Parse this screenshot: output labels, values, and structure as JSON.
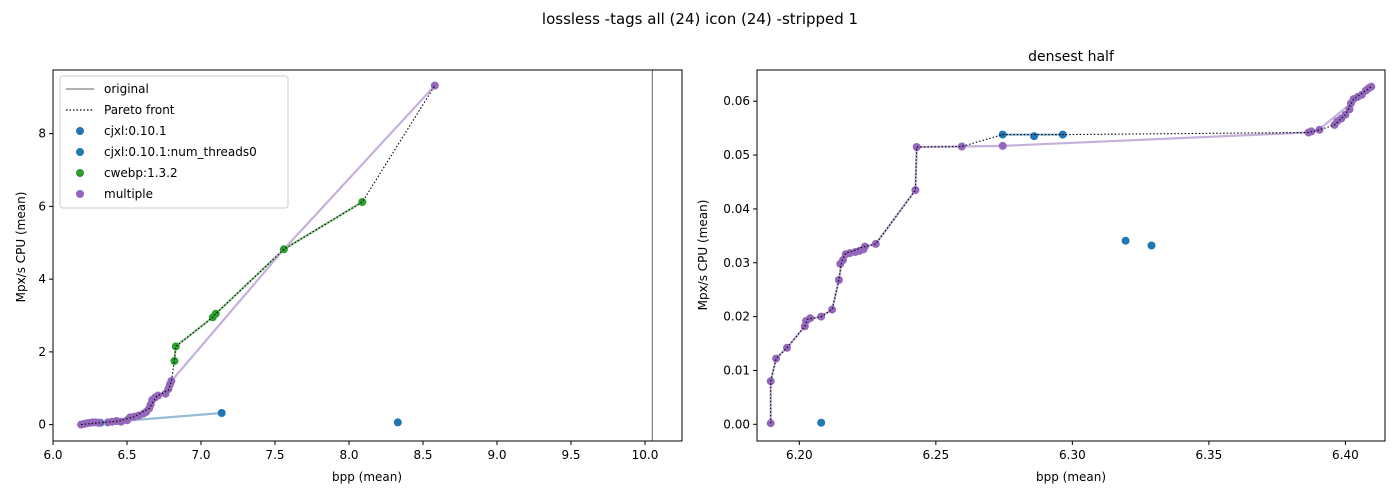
{
  "suptitle": "lossless -tags all (24) icon (24) -stripped 1",
  "colors": {
    "original": "#808080",
    "pareto": "#000000",
    "cjxl": "#1f77b4",
    "cjxl_line": "#97bcd9",
    "cwebp": "#2ca02c",
    "multiple": "#9467bd",
    "multiple_line": "#c5b0dc"
  },
  "chart_data": [
    {
      "type": "scatter",
      "title": "",
      "xlabel": "bpp (mean)",
      "ylabel": "Mpx/s CPU (mean)",
      "xlim": [
        6.0,
        10.25
      ],
      "ylim": [
        -0.45,
        9.75
      ],
      "xticks": [
        6.0,
        6.5,
        7.0,
        7.5,
        8.0,
        8.5,
        9.0,
        9.5,
        10.0
      ],
      "xtick_labels": [
        "6.0",
        "6.5",
        "7.0",
        "7.5",
        "8.0",
        "8.5",
        "9.0",
        "9.5",
        "10.0"
      ],
      "yticks": [
        0,
        2,
        4,
        6,
        8
      ],
      "ytick_labels": [
        "0",
        "2",
        "4",
        "6",
        "8"
      ],
      "original_x": 10.05,
      "legend": {
        "position": "upper-left",
        "entries": [
          {
            "label": "original",
            "kind": "line",
            "color_key": "original"
          },
          {
            "label": "Pareto front",
            "kind": "dotted",
            "color_key": "pareto"
          },
          {
            "label": "cjxl:0.10.1",
            "kind": "marker",
            "color_key": "cjxl"
          },
          {
            "label": "cjxl:0.10.1:num_threads0",
            "kind": "marker",
            "color_key": "cjxl"
          },
          {
            "label": "cwebp:1.3.2",
            "kind": "marker",
            "color_key": "cwebp"
          },
          {
            "label": "multiple",
            "kind": "marker",
            "color_key": "multiple"
          }
        ]
      },
      "series": [
        {
          "key": "cjxl",
          "color_key": "cjxl",
          "line_color_key": "cjxl_line",
          "line": [
            [
              6.32,
              0.05
            ],
            [
              7.14,
              0.32
            ]
          ],
          "points": [
            [
              6.32,
              0.05
            ],
            [
              7.14,
              0.32
            ],
            [
              8.33,
              0.06
            ]
          ]
        },
        {
          "key": "cwebp",
          "color_key": "cwebp",
          "line_color_key": "cwebp",
          "line": [
            [
              6.82,
              1.75
            ],
            [
              6.83,
              2.15
            ],
            [
              7.08,
              2.95
            ],
            [
              7.1,
              3.05
            ],
            [
              7.56,
              4.82
            ],
            [
              8.09,
              6.12
            ]
          ],
          "points": [
            [
              6.82,
              1.75
            ],
            [
              6.83,
              2.15
            ],
            [
              7.08,
              2.95
            ],
            [
              7.1,
              3.05
            ],
            [
              7.56,
              4.82
            ],
            [
              8.09,
              6.12
            ]
          ]
        },
        {
          "key": "multiple",
          "color_key": "multiple",
          "line_color_key": "multiple_line",
          "line": [
            [
              6.19,
              0.0
            ],
            [
              6.25,
              0.05
            ],
            [
              6.31,
              0.05
            ],
            [
              6.38,
              0.07
            ],
            [
              6.48,
              0.08
            ],
            [
              6.53,
              0.22
            ],
            [
              6.6,
              0.3
            ],
            [
              6.65,
              0.45
            ],
            [
              6.68,
              0.7
            ],
            [
              6.74,
              0.85
            ],
            [
              6.8,
              1.2
            ],
            [
              7.56,
              4.82
            ],
            [
              8.58,
              9.32
            ]
          ],
          "points": [
            [
              6.19,
              0.0
            ],
            [
              6.21,
              0.02
            ],
            [
              6.23,
              0.04
            ],
            [
              6.25,
              0.05
            ],
            [
              6.27,
              0.06
            ],
            [
              6.29,
              0.06
            ],
            [
              6.31,
              0.05
            ],
            [
              6.37,
              0.06
            ],
            [
              6.4,
              0.08
            ],
            [
              6.43,
              0.1
            ],
            [
              6.46,
              0.08
            ],
            [
              6.5,
              0.12
            ],
            [
              6.52,
              0.2
            ],
            [
              6.55,
              0.22
            ],
            [
              6.58,
              0.25
            ],
            [
              6.61,
              0.3
            ],
            [
              6.63,
              0.35
            ],
            [
              6.65,
              0.45
            ],
            [
              6.66,
              0.55
            ],
            [
              6.67,
              0.68
            ],
            [
              6.69,
              0.75
            ],
            [
              6.71,
              0.8
            ],
            [
              6.76,
              0.85
            ],
            [
              6.78,
              0.98
            ],
            [
              6.79,
              1.1
            ],
            [
              6.8,
              1.2
            ],
            [
              8.58,
              9.32
            ]
          ]
        }
      ],
      "pareto": [
        [
          6.19,
          0.0
        ],
        [
          6.31,
          0.05
        ],
        [
          6.45,
          0.1
        ],
        [
          6.55,
          0.22
        ],
        [
          6.65,
          0.45
        ],
        [
          6.7,
          0.78
        ],
        [
          6.78,
          0.95
        ],
        [
          6.8,
          1.2
        ],
        [
          6.82,
          1.75
        ],
        [
          6.83,
          2.15
        ],
        [
          7.08,
          2.95
        ],
        [
          7.1,
          3.05
        ],
        [
          7.56,
          4.82
        ],
        [
          8.09,
          6.12
        ],
        [
          8.58,
          9.32
        ]
      ]
    },
    {
      "type": "scatter",
      "title": "densest half",
      "xlabel": "bpp (mean)",
      "ylabel": "Mpx/s CPU (mean)",
      "xlim": [
        6.1845,
        6.4145
      ],
      "ylim": [
        -0.0031,
        0.0658
      ],
      "xticks": [
        6.2,
        6.25,
        6.3,
        6.35,
        6.4
      ],
      "xtick_labels": [
        "6.20",
        "6.25",
        "6.30",
        "6.35",
        "6.40"
      ],
      "yticks": [
        0.0,
        0.01,
        0.02,
        0.03,
        0.04,
        0.05,
        0.06
      ],
      "ytick_labels": [
        "0.00",
        "0.01",
        "0.02",
        "0.03",
        "0.04",
        "0.05",
        "0.06"
      ],
      "series": [
        {
          "key": "cjxl",
          "color_key": "cjxl",
          "line_color_key": "cjxl_line",
          "line": [
            [
              6.2745,
              0.0538
            ],
            [
              6.2965,
              0.0538
            ]
          ],
          "points": [
            [
              6.2745,
              0.0538
            ],
            [
              6.286,
              0.0535
            ],
            [
              6.2965,
              0.0538
            ],
            [
              6.3195,
              0.0341
            ],
            [
              6.329,
              0.0332
            ],
            [
              6.208,
              0.0003
            ]
          ]
        },
        {
          "key": "multiple",
          "color_key": "multiple",
          "line_color_key": "multiple_line",
          "line": [
            [
              6.1895,
              0.0002
            ],
            [
              6.1895,
              0.008
            ],
            [
              6.1915,
              0.0122
            ],
            [
              6.1955,
              0.0142
            ],
            [
              6.202,
              0.0182
            ],
            [
              6.203,
              0.0195
            ],
            [
              6.208,
              0.02
            ],
            [
              6.212,
              0.0213
            ],
            [
              6.2145,
              0.0268
            ],
            [
              6.2155,
              0.0302
            ],
            [
              6.217,
              0.0318
            ],
            [
              6.22,
              0.0322
            ],
            [
              6.2225,
              0.0328
            ],
            [
              6.228,
              0.0335
            ],
            [
              6.2425,
              0.0435
            ],
            [
              6.243,
              0.0515
            ],
            [
              6.2595,
              0.0516
            ],
            [
              6.2745,
              0.0517
            ],
            [
              6.3865,
              0.0542
            ],
            [
              6.39,
              0.0546
            ],
            [
              6.409,
              0.0625
            ]
          ],
          "points": [
            [
              6.1895,
              0.0002
            ],
            [
              6.1895,
              0.008
            ],
            [
              6.1915,
              0.0122
            ],
            [
              6.1955,
              0.0142
            ],
            [
              6.202,
              0.0182
            ],
            [
              6.2025,
              0.0192
            ],
            [
              6.204,
              0.0197
            ],
            [
              6.208,
              0.02
            ],
            [
              6.212,
              0.0213
            ],
            [
              6.2145,
              0.0268
            ],
            [
              6.215,
              0.0298
            ],
            [
              6.216,
              0.0305
            ],
            [
              6.217,
              0.0316
            ],
            [
              6.2185,
              0.0318
            ],
            [
              6.2205,
              0.032
            ],
            [
              6.222,
              0.0322
            ],
            [
              6.2235,
              0.0325
            ],
            [
              6.224,
              0.033
            ],
            [
              6.228,
              0.0335
            ],
            [
              6.2425,
              0.0435
            ],
            [
              6.243,
              0.0515
            ],
            [
              6.2595,
              0.0516
            ],
            [
              6.2745,
              0.0517
            ],
            [
              6.3865,
              0.0542
            ],
            [
              6.3875,
              0.0544
            ],
            [
              6.3905,
              0.0547
            ],
            [
              6.396,
              0.0556
            ],
            [
              6.397,
              0.0563
            ],
            [
              6.3985,
              0.0568
            ],
            [
              6.4,
              0.0575
            ],
            [
              6.4015,
              0.0585
            ],
            [
              6.402,
              0.0596
            ],
            [
              6.403,
              0.0604
            ],
            [
              6.4045,
              0.0608
            ],
            [
              6.406,
              0.0612
            ],
            [
              6.4075,
              0.062
            ],
            [
              6.4085,
              0.0624
            ],
            [
              6.4095,
              0.0627
            ]
          ]
        }
      ],
      "pareto": [
        [
          6.1895,
          0.0002
        ],
        [
          6.1895,
          0.008
        ],
        [
          6.1915,
          0.0122
        ],
        [
          6.1955,
          0.0142
        ],
        [
          6.202,
          0.0182
        ],
        [
          6.203,
          0.0195
        ],
        [
          6.208,
          0.02
        ],
        [
          6.212,
          0.0213
        ],
        [
          6.2145,
          0.0268
        ],
        [
          6.2155,
          0.0302
        ],
        [
          6.217,
          0.0318
        ],
        [
          6.22,
          0.0322
        ],
        [
          6.2225,
          0.0328
        ],
        [
          6.228,
          0.0335
        ],
        [
          6.2425,
          0.0435
        ],
        [
          6.243,
          0.0515
        ],
        [
          6.2595,
          0.0516
        ],
        [
          6.2745,
          0.0538
        ],
        [
          6.2965,
          0.0538
        ],
        [
          6.3865,
          0.0542
        ],
        [
          6.39,
          0.0546
        ],
        [
          6.396,
          0.0556
        ],
        [
          6.4,
          0.0575
        ],
        [
          6.403,
          0.0604
        ],
        [
          6.4095,
          0.0627
        ]
      ]
    }
  ]
}
